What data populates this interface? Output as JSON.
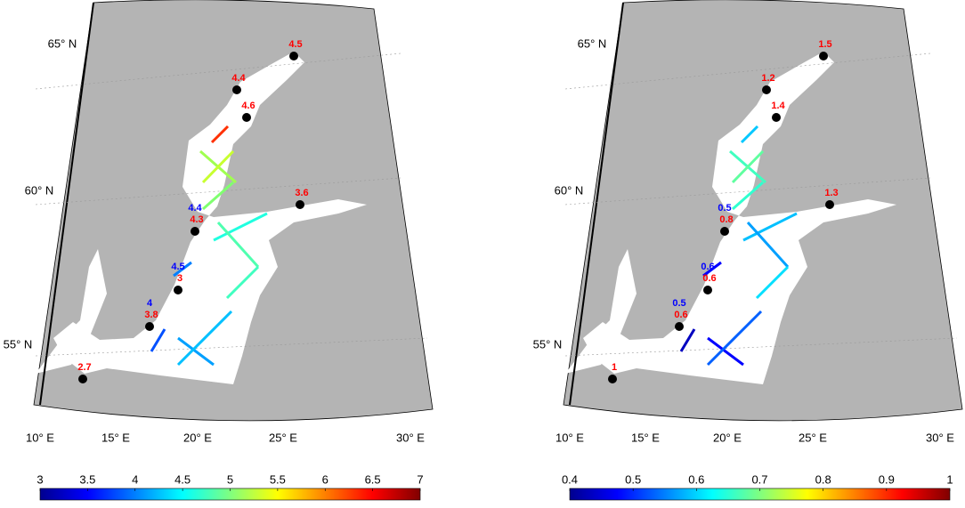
{
  "panels": [
    {
      "lat_labels": [
        "65° N",
        "60° N",
        "55° N"
      ],
      "lon_labels": [
        "10° E",
        "15° E",
        "20° E",
        "25° E",
        "30° E"
      ],
      "stations": [
        {
          "red": 4.5
        },
        {
          "red": 4.4
        },
        {
          "red": 4.6
        },
        {
          "red": 3.6
        },
        {
          "blue": 4.4,
          "red": 4.3
        },
        {
          "blue": 4.5,
          "red": 3
        },
        {
          "blue": 4,
          "red": 3.8
        },
        {
          "red": 2.7
        }
      ],
      "colorbar": {
        "lim": [
          3,
          7
        ],
        "ticks": [
          3,
          3.5,
          4,
          4.5,
          5,
          5.5,
          6,
          6.5,
          7
        ]
      }
    },
    {
      "lat_labels": [
        "65° N",
        "60° N",
        "55° N"
      ],
      "lon_labels": [
        "10° E",
        "15° E",
        "20° E",
        "25° E",
        "30° E"
      ],
      "stations": [
        {
          "red": 1.5
        },
        {
          "red": 1.2
        },
        {
          "red": 1.4
        },
        {
          "red": 1.3
        },
        {
          "blue": 0.5,
          "red": 0.8
        },
        {
          "blue": 0.6,
          "red": 0.6
        },
        {
          "blue": 0.5,
          "red": 0.6
        },
        {
          "red": 1
        }
      ],
      "colorbar": {
        "lim": [
          0.4,
          1
        ],
        "ticks": [
          0.4,
          0.5,
          0.6,
          0.7,
          0.8,
          0.9,
          1
        ]
      }
    }
  ]
}
